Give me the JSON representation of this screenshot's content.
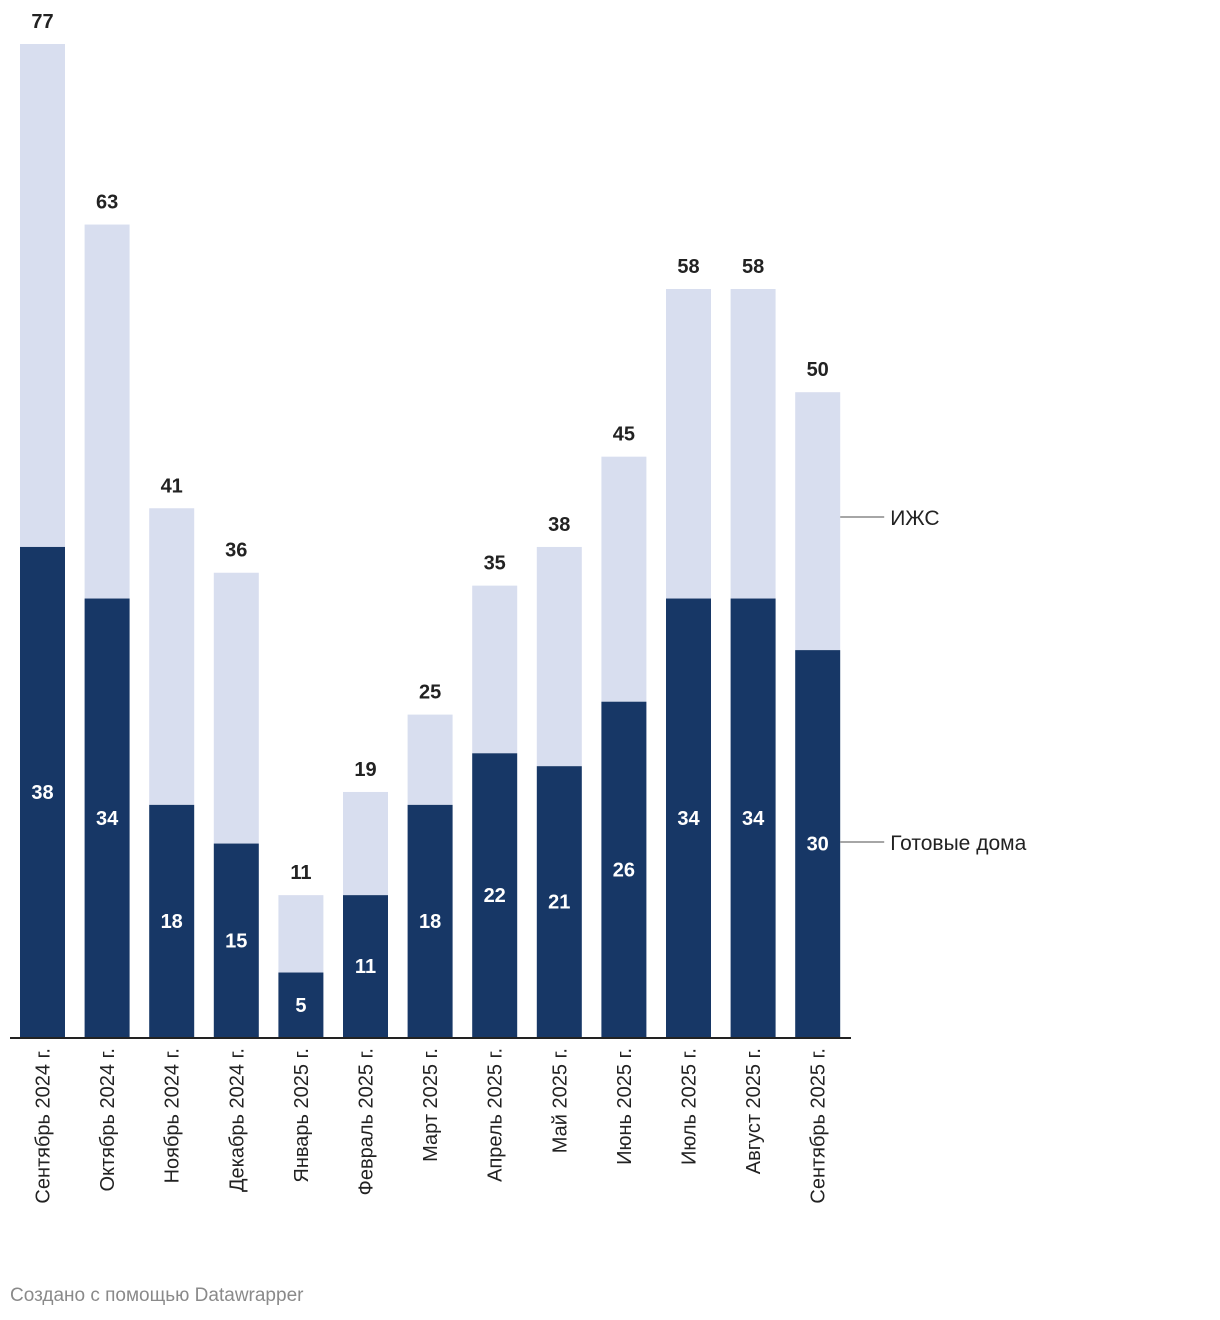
{
  "chart_data": {
    "type": "bar",
    "stacked": true,
    "categories": [
      "Сентябрь 2024 г.",
      "Октябрь 2024 г.",
      "Ноябрь 2024 г.",
      "Декабрь 2024 г.",
      "Январь 2025 г.",
      "Февраль 2025 г.",
      "Март 2025 г.",
      "Апрель 2025 г.",
      "Май 2025 г.",
      "Июнь 2025 г.",
      "Июль 2025 г.",
      "Август 2025 г.",
      "Сентябрь 2025 г."
    ],
    "series": [
      {
        "name": "Готовые дома",
        "color": "#173766",
        "values": [
          38,
          34,
          18,
          15,
          5,
          11,
          18,
          22,
          21,
          26,
          34,
          34,
          30
        ]
      },
      {
        "name": "ИЖС",
        "color": "#d8deef",
        "values": [
          39,
          29,
          23,
          21,
          6,
          8,
          7,
          13,
          17,
          19,
          24,
          24,
          20
        ]
      }
    ],
    "totals": [
      77,
      63,
      41,
      36,
      11,
      19,
      25,
      35,
      38,
      45,
      58,
      58,
      50
    ],
    "ylim": [
      0,
      77
    ],
    "grid": false,
    "legend": "right, inline labels"
  },
  "footer": "Создано с помощью Datawrapper"
}
